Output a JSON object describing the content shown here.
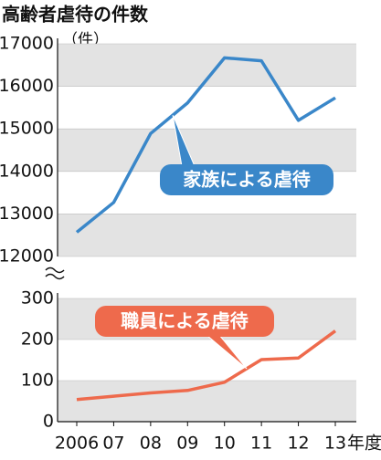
{
  "chart_data": [
    {
      "type": "line",
      "title": "高齢者虐待の件数",
      "unit": "（件）",
      "series": [
        {
          "name": "家族による虐待",
          "color": "#3a87c9",
          "values": [
            12570,
            13270,
            14890,
            15610,
            16670,
            16600,
            15200,
            15730
          ]
        }
      ],
      "ylim": [
        12000,
        17000
      ],
      "yticks": [
        12000,
        13000,
        14000,
        15000,
        16000,
        17000
      ],
      "grid": true
    },
    {
      "type": "line",
      "categories": [
        "2006",
        "07",
        "08",
        "09",
        "10",
        "11",
        "12",
        "13"
      ],
      "xlabel": "年度",
      "series": [
        {
          "name": "職員による虐待",
          "color": "#ee6a4c",
          "values": [
            54,
            62,
            70,
            76,
            96,
            151,
            155,
            221
          ]
        }
      ],
      "ylim": [
        0,
        300
      ],
      "yticks": [
        0,
        100,
        200,
        300
      ],
      "grid": true
    }
  ]
}
